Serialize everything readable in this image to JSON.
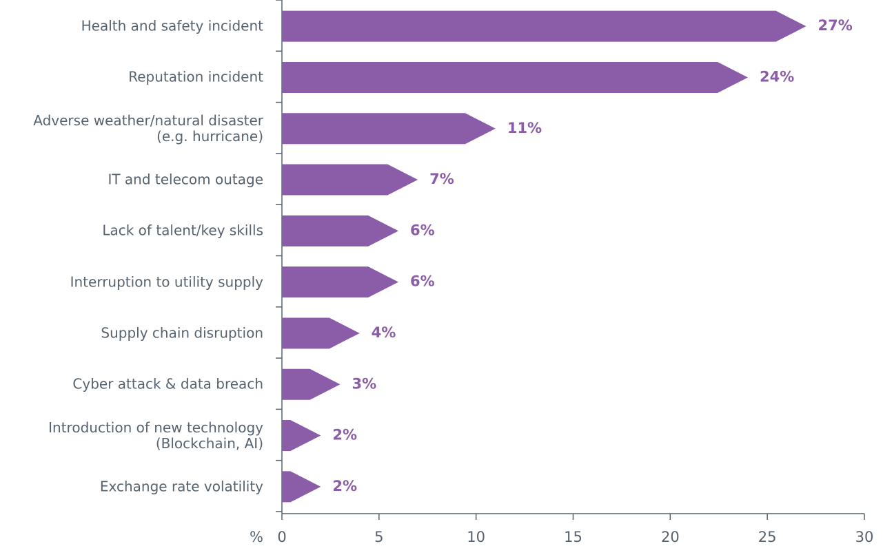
{
  "chart_data": {
    "type": "bar",
    "orientation": "horizontal",
    "categories": [
      "Health and safety incident",
      "Reputation incident",
      "Adverse weather/natural disaster\n(e.g. hurricane)",
      "IT and telecom outage",
      "Lack of talent/key skills",
      "Interruption to utility supply",
      "Supply chain disruption",
      "Cyber attack & data breach",
      "Introduction of new technology\n(Blockchain, AI)",
      "Exchange rate volatility"
    ],
    "values": [
      27,
      24,
      11,
      7,
      6,
      6,
      4,
      3,
      2,
      2
    ],
    "value_labels": [
      "27%",
      "24%",
      "11%",
      "7%",
      "6%",
      "6%",
      "4%",
      "3%",
      "2%",
      "2%"
    ],
    "color": "#8b5ca7",
    "xlabel": "%",
    "xlim": [
      0,
      30
    ],
    "xticks": [
      0,
      5,
      10,
      15,
      20,
      25,
      30
    ]
  }
}
